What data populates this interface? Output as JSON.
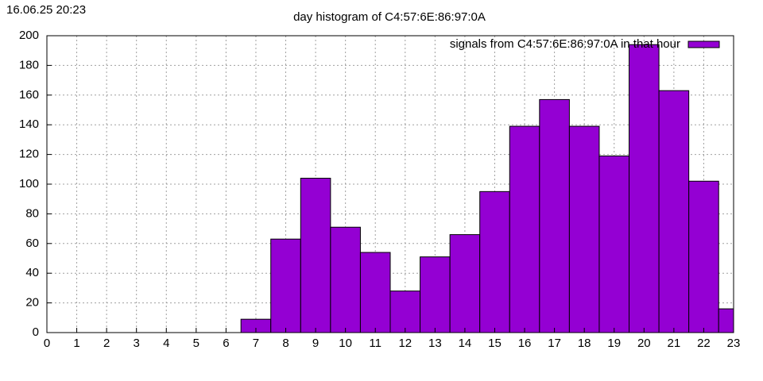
{
  "chart_data": {
    "type": "bar",
    "timestamp": "16.06.25 20:23",
    "title": "day histogram of C4:57:6E:86:97:0A",
    "series": [
      {
        "name": "signals from C4:57:6E:86:97:0A in that hour",
        "color": "#9400d3",
        "x": [
          7,
          8,
          9,
          10,
          11,
          12,
          13,
          14,
          15,
          16,
          17,
          18,
          19,
          20,
          21,
          22,
          23
        ],
        "values": [
          9,
          63,
          104,
          71,
          54,
          28,
          51,
          66,
          95,
          139,
          157,
          139,
          119,
          194,
          163,
          102,
          16
        ]
      }
    ],
    "bar_width": 1,
    "xlim": [
      0,
      23
    ],
    "xticks": [
      0,
      1,
      2,
      3,
      4,
      5,
      6,
      7,
      8,
      9,
      10,
      11,
      12,
      13,
      14,
      15,
      16,
      17,
      18,
      19,
      20,
      21,
      22,
      23
    ],
    "ylim": [
      0,
      200
    ],
    "yticks": [
      0,
      20,
      40,
      60,
      80,
      100,
      120,
      140,
      160,
      180,
      200
    ],
    "grid": true,
    "legend": "top-right"
  }
}
